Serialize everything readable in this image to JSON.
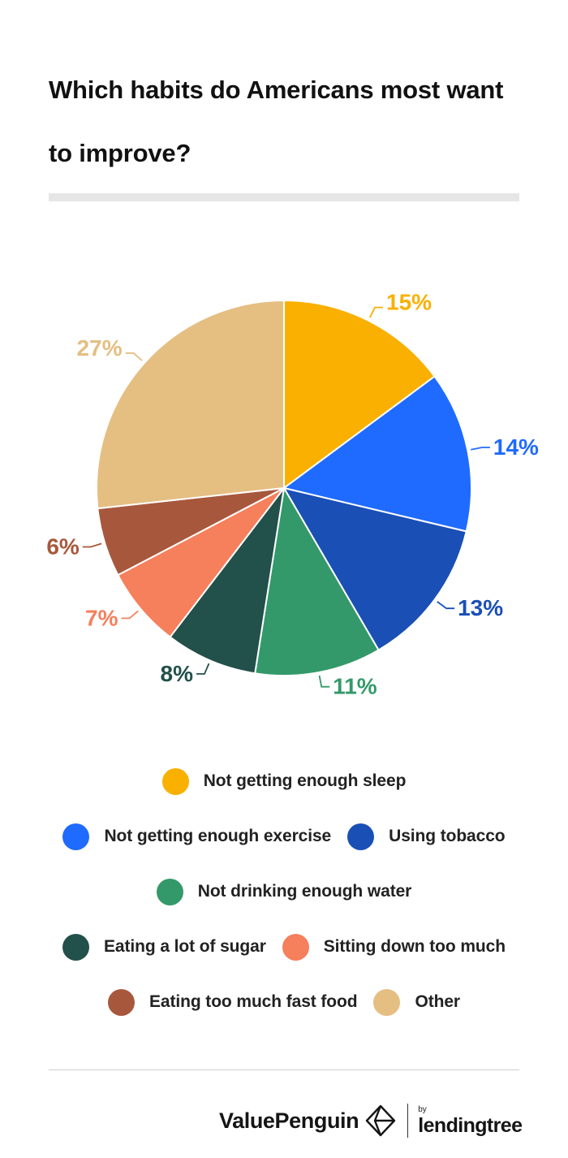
{
  "chart_data": {
    "type": "pie",
    "title": "Which habits do Americans most want to improve?",
    "slices": [
      {
        "label": "Not getting enough sleep",
        "value": 15,
        "display": "15%",
        "color": "#F9B000"
      },
      {
        "label": "Not getting enough exercise",
        "value": 14,
        "display": "14%",
        "color": "#1F6BFF"
      },
      {
        "label": "Using tobacco",
        "value": 13,
        "display": "13%",
        "color": "#1A4FB5"
      },
      {
        "label": "Not drinking enough water",
        "value": 11,
        "display": "11%",
        "color": "#33996A"
      },
      {
        "label": "Eating a lot of sugar",
        "value": 8,
        "display": "8%",
        "color": "#22504A"
      },
      {
        "label": "Sitting down too much",
        "value": 7,
        "display": "7%",
        "color": "#F67F5C"
      },
      {
        "label": "Eating too much fast food",
        "value": 6,
        "display": "6%",
        "color": "#A7583C"
      },
      {
        "label": "Other",
        "value": 27,
        "display": "27%",
        "color": "#E5BE82"
      }
    ],
    "legend_position": "bottom"
  },
  "brand": {
    "name": "ValuePenguin",
    "by": "by",
    "partner": "lendingtree"
  }
}
